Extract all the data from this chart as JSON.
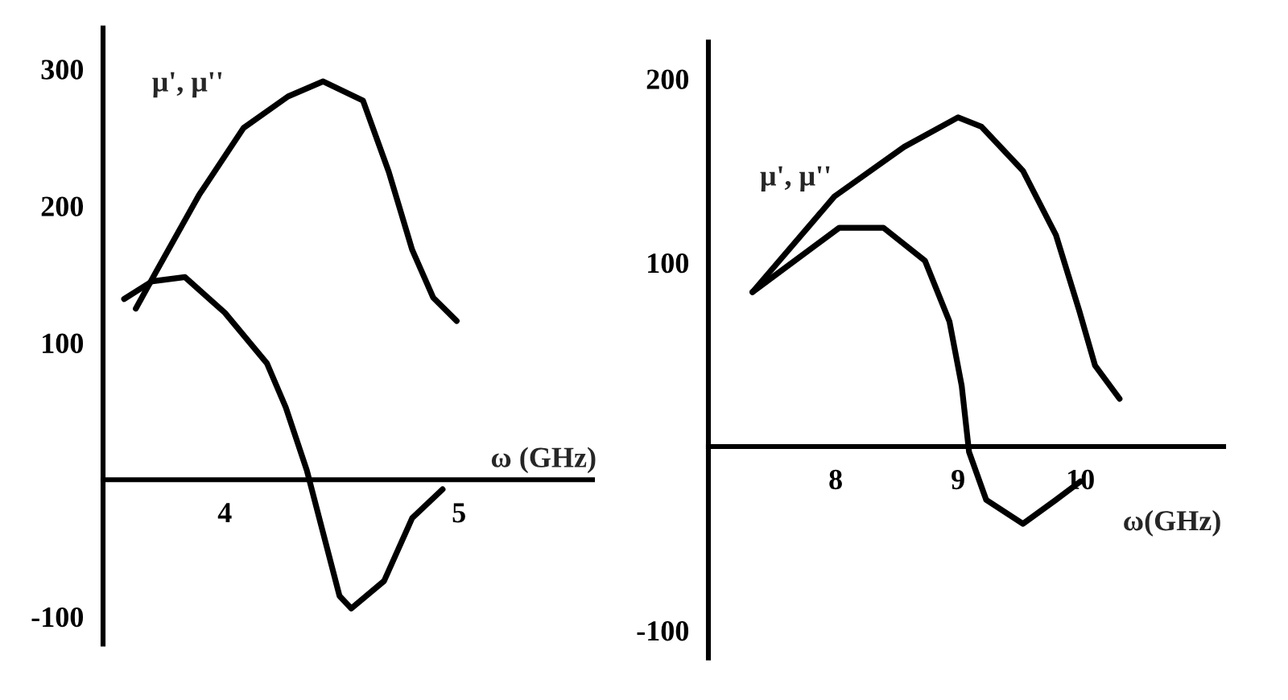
{
  "chart_data": [
    {
      "type": "line",
      "xlabel": "ω (GHz)",
      "ylabel": "μ', μ''",
      "xlim": [
        3.48,
        5.57
      ],
      "ylim": [
        -120,
        330
      ],
      "xticks": [
        4,
        5
      ],
      "yticks": [
        300,
        200,
        100,
        -100
      ],
      "grid": false,
      "series": [
        {
          "color": "#000000",
          "x": [
            3.62,
            3.71,
            3.89,
            4.08,
            4.27,
            4.42,
            4.59,
            4.7,
            4.8,
            4.89,
            4.99
          ],
          "values": [
            125,
            153,
            208,
            257,
            280,
            291,
            277,
            225,
            168,
            133,
            116
          ]
        },
        {
          "color": "#000000",
          "x": [
            3.57,
            3.69,
            3.83,
            4.0,
            4.18,
            4.26,
            4.35,
            4.42,
            4.49,
            4.54,
            4.68,
            4.8,
            4.93
          ],
          "values": [
            132,
            145,
            148,
            122,
            85,
            53,
            7,
            -39,
            -85,
            -94,
            -74,
            -28,
            -7
          ]
        }
      ]
    },
    {
      "type": "line",
      "xlabel": "ω(GHz)",
      "ylabel": "μ', μ''",
      "xlim": [
        6.96,
        11.17
      ],
      "ylim": [
        -115,
        220
      ],
      "xticks": [
        8,
        9,
        10
      ],
      "yticks": [
        200,
        100,
        -100
      ],
      "grid": false,
      "series": [
        {
          "color": "#000000",
          "x": [
            7.32,
            7.99,
            8.56,
            9.0,
            9.19,
            9.53,
            9.8,
            9.99,
            10.12,
            10.32
          ],
          "values": [
            84,
            136,
            163,
            179,
            174,
            150,
            115,
            74,
            44,
            26
          ]
        },
        {
          "color": "#000000",
          "x": [
            7.32,
            8.03,
            8.39,
            8.73,
            8.93,
            9.03,
            9.09,
            9.23,
            9.53,
            9.8,
            10.0
          ],
          "values": [
            84,
            119,
            119,
            101,
            68,
            33,
            -3,
            -29,
            -42,
            -29,
            -19
          ]
        }
      ]
    }
  ]
}
